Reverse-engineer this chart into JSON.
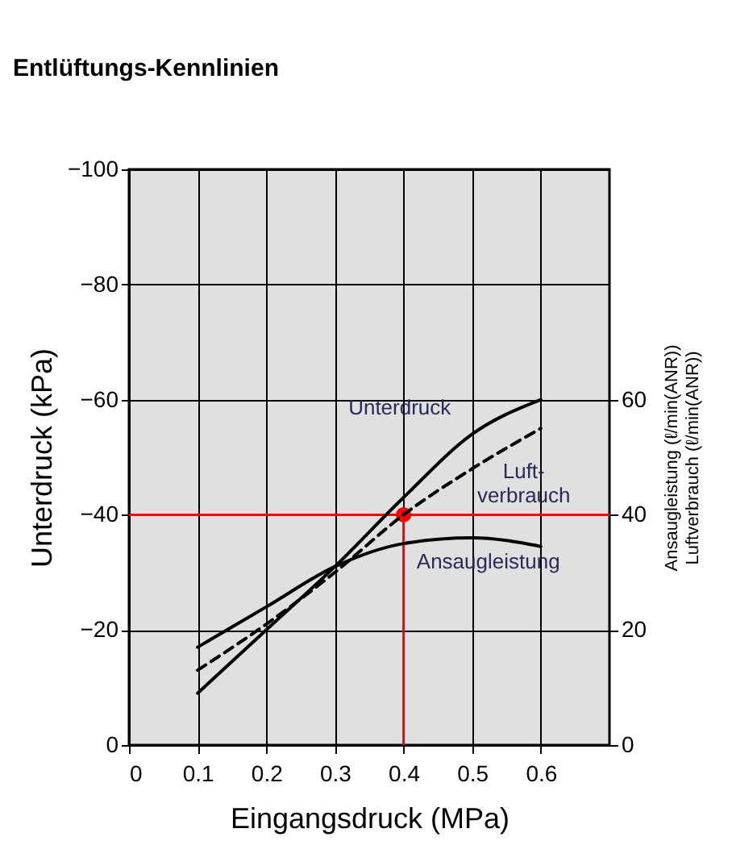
{
  "chart_data": {
    "type": "line",
    "title": "Entlüftungs-Kennlinien",
    "xlabel": "Eingangsdruck (MPa)",
    "ylabel": "Unterdruck (kPa)",
    "y2label": "Ansaugleistung (ℓ/min(ANR))\nLuftverbrauch (ℓ/min(ANR))",
    "x": [
      0.1,
      0.2,
      0.3,
      0.4,
      0.5,
      0.6
    ],
    "series": [
      {
        "name": "Unterdruck",
        "color": "#000000",
        "axis": "y",
        "line_style": "solid",
        "values": [
          -9,
          -20,
          -31,
          -43,
          -54,
          -60
        ]
      },
      {
        "name": "Luft-\nverbrauch",
        "color": "#000000",
        "axis": "y2",
        "line_style": "dashed",
        "values": [
          13,
          21,
          30,
          40,
          48,
          55
        ]
      },
      {
        "name": "Ansaugleistung",
        "color": "#000000",
        "axis": "y2",
        "line_style": "solid",
        "values": [
          17,
          24,
          31,
          35,
          36,
          34.5
        ]
      },
      {
        "type": "scatter",
        "color": "#ff0000",
        "axis": "y",
        "marker": "circle",
        "x": [
          0.4
        ],
        "values": [
          -40
        ]
      }
    ],
    "xlim": [
      0,
      0.7
    ],
    "xticks": [
      {
        "value": 0,
        "label": "0"
      },
      0.1,
      0.2,
      0.3,
      0.4,
      0.5,
      0.6
    ],
    "ylim": [
      0,
      -100
    ],
    "yticks": [
      0,
      -20,
      -40,
      -60,
      -80,
      -100
    ],
    "y2lim": [
      0,
      100
    ],
    "y2ticks": [
      0,
      20,
      40,
      60
    ],
    "ref_lines": [
      {
        "axis": "y",
        "value": -40,
        "color": "#ff0000"
      },
      {
        "axis": "x",
        "value": 0.4,
        "color": "#ff0000"
      }
    ],
    "grid": true,
    "marker": "none"
  }
}
